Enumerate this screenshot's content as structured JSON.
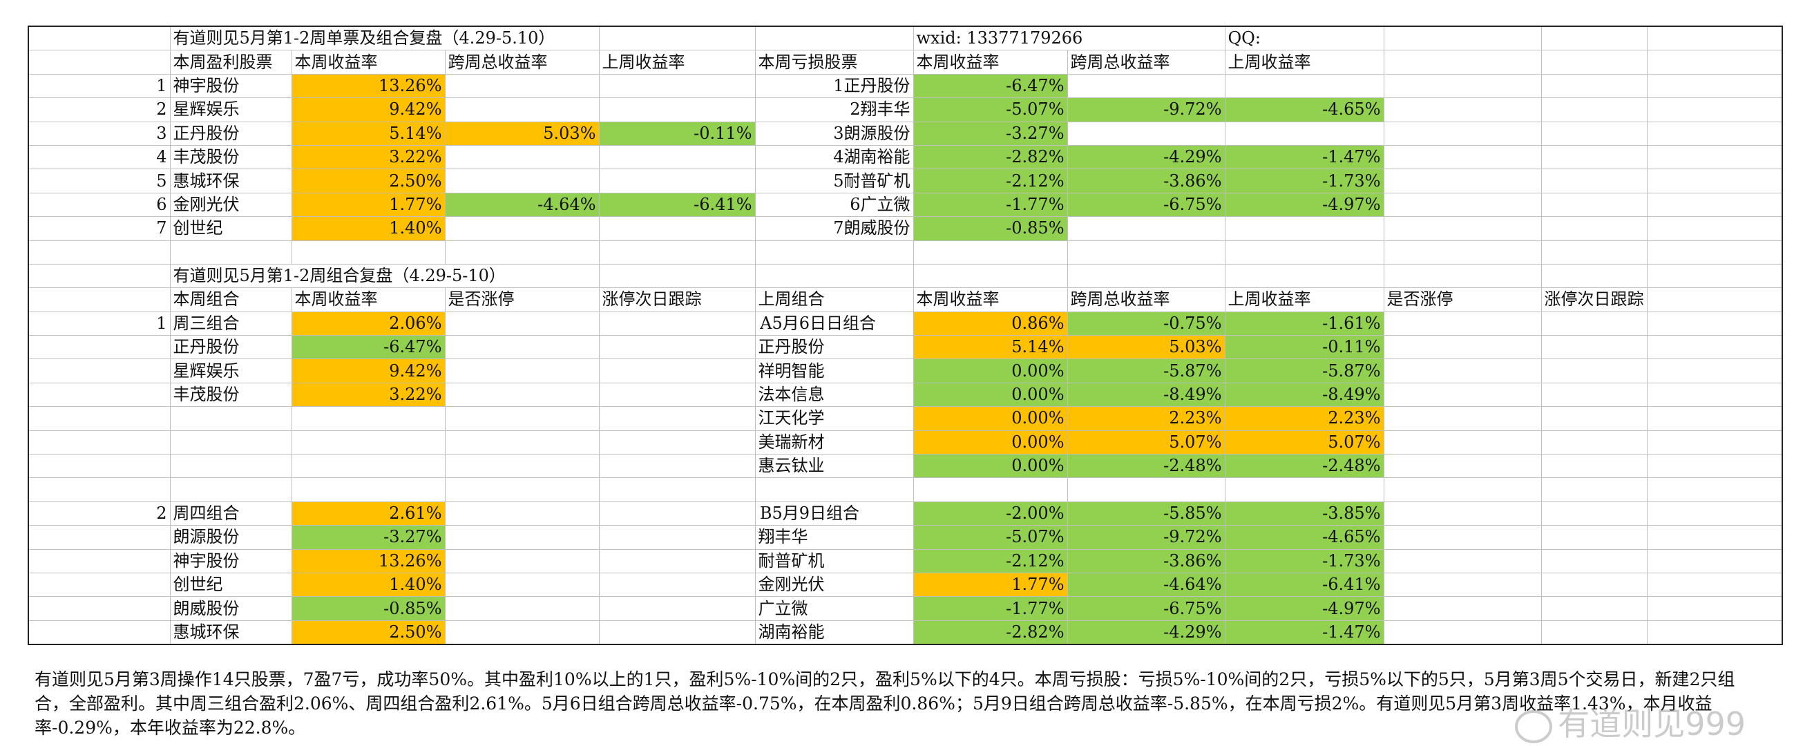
{
  "single_title": "有道则见5月第1-2周单票及组合复盘（4.29-5.10）",
  "wxid_label": "wxid:",
  "wxid_value": "13377179266",
  "qq_label": "QQ:",
  "profit_headers": [
    "本周盈利股票",
    "本周收益率",
    "跨周总收益率",
    "上周收益率"
  ],
  "loss_headers": [
    "本周亏损股票",
    "本周收益率",
    "跨周总收益率",
    "上周收益率"
  ],
  "profit_rows": [
    {
      "n": "1",
      "name": "神宇股份",
      "week": "13.26%",
      "cross": "",
      "last": ""
    },
    {
      "n": "2",
      "name": "星辉娱乐",
      "week": "9.42%",
      "cross": "",
      "last": ""
    },
    {
      "n": "3",
      "name": "正丹股份",
      "week": "5.14%",
      "cross": "5.03%",
      "last": "-0.11%"
    },
    {
      "n": "4",
      "name": "丰茂股份",
      "week": "3.22%",
      "cross": "",
      "last": ""
    },
    {
      "n": "5",
      "name": "惠城环保",
      "week": "2.50%",
      "cross": "",
      "last": ""
    },
    {
      "n": "6",
      "name": "金刚光伏",
      "week": "1.77%",
      "cross": "-4.64%",
      "last": "-6.41%"
    },
    {
      "n": "7",
      "name": "创世纪",
      "week": "1.40%",
      "cross": "",
      "last": ""
    }
  ],
  "loss_rows": [
    {
      "n": "1",
      "name": "正丹股份",
      "week": "-6.47%",
      "cross": "",
      "last": ""
    },
    {
      "n": "2",
      "name": "翔丰华",
      "week": "-5.07%",
      "cross": "-9.72%",
      "last": "-4.65%"
    },
    {
      "n": "3",
      "name": "朗源股份",
      "week": "-3.27%",
      "cross": "",
      "last": ""
    },
    {
      "n": "4",
      "name": "湖南裕能",
      "week": "-2.82%",
      "cross": "-4.29%",
      "last": "-1.47%"
    },
    {
      "n": "5",
      "name": "耐普矿机",
      "week": "-2.12%",
      "cross": "-3.86%",
      "last": "-1.73%"
    },
    {
      "n": "6",
      "name": "广立微",
      "week": "-1.77%",
      "cross": "-6.75%",
      "last": "-4.97%"
    },
    {
      "n": "7",
      "name": "朗威股份",
      "week": "-0.85%",
      "cross": "",
      "last": ""
    }
  ],
  "combo_title": "有道则见5月第1-2周组合复盘（4.29-5-10）",
  "combo_left_headers": [
    "本周组合",
    "本周收益率",
    "是否涨停",
    "涨停次日跟踪"
  ],
  "combo_right_headers": [
    "上周组合",
    "本周收益率",
    "跨周总收益率",
    "上周收益率",
    "是否涨停",
    "涨停次日跟踪"
  ],
  "combo1": {
    "n": "1",
    "name": "周三组合",
    "week": "2.06%",
    "members": [
      {
        "name": "正丹股份",
        "week": "-6.47%"
      },
      {
        "name": "星辉娱乐",
        "week": "9.42%"
      },
      {
        "name": "丰茂股份",
        "week": "3.22%"
      }
    ]
  },
  "comboA": {
    "n": "A",
    "name": "5月6日日组合",
    "week": "0.86%",
    "cross": "-0.75%",
    "last": "-1.61%",
    "members": [
      {
        "name": "正丹股份",
        "week": "5.14%",
        "cross": "5.03%",
        "last": "-0.11%"
      },
      {
        "name": "祥明智能",
        "week": "0.00%",
        "cross": "-5.87%",
        "last": "-5.87%"
      },
      {
        "name": "法本信息",
        "week": "0.00%",
        "cross": "-8.49%",
        "last": "-8.49%"
      },
      {
        "name": "江天化学",
        "week": "0.00%",
        "cross": "2.23%",
        "last": "2.23%"
      },
      {
        "name": "美瑞新材",
        "week": "0.00%",
        "cross": "5.07%",
        "last": "5.07%"
      },
      {
        "name": "惠云钛业",
        "week": "0.00%",
        "cross": "-2.48%",
        "last": "-2.48%"
      }
    ]
  },
  "combo2": {
    "n": "2",
    "name": "周四组合",
    "week": "2.61%",
    "members": [
      {
        "name": "朗源股份",
        "week": "-3.27%"
      },
      {
        "name": "神宇股份",
        "week": "13.26%"
      },
      {
        "name": "创世纪",
        "week": "1.40%"
      },
      {
        "name": "朗威股份",
        "week": "-0.85%"
      },
      {
        "name": "惠城环保",
        "week": "2.50%"
      }
    ]
  },
  "comboB": {
    "n": "B",
    "name": "5月9日组合",
    "week": "-2.00%",
    "cross": "-5.85%",
    "last": "-3.85%",
    "members": [
      {
        "name": "翔丰华",
        "week": "-5.07%",
        "cross": "-9.72%",
        "last": "-4.65%"
      },
      {
        "name": "耐普矿机",
        "week": "-2.12%",
        "cross": "-3.86%",
        "last": "-1.73%"
      },
      {
        "name": "金刚光伏",
        "week": "1.77%",
        "cross": "-4.64%",
        "last": "-6.41%"
      },
      {
        "name": "广立微",
        "week": "-1.77%",
        "cross": "-6.75%",
        "last": "-4.97%"
      },
      {
        "name": "湖南裕能",
        "week": "-2.82%",
        "cross": "-4.29%",
        "last": "-1.47%"
      }
    ]
  },
  "summary": "有道则见5月第3周操作14只股票，7盈7亏，成功率50%。其中盈利10%以上的1只，盈利5%-10%间的2只，盈利5%以下的4只。本周亏损股：亏损5%-10%间的2只，亏损5%以下的5只，5月第3周5个交易日，新建2只组合，全部盈利。其中周三组合盈利2.06%、周四组合盈利2.61%。5月6日组合跨周总收益率-0.75%，在本周盈利0.86%；5月9日组合跨周总收益率-5.85%，在本周亏损2%。有道则见5月第3周收益率1.43%，本月收益率-0.29%，本年收益率为22.8%。",
  "watermark": "有道则见999",
  "colors": {
    "green": "#92d050",
    "orange": "#ffc000"
  }
}
